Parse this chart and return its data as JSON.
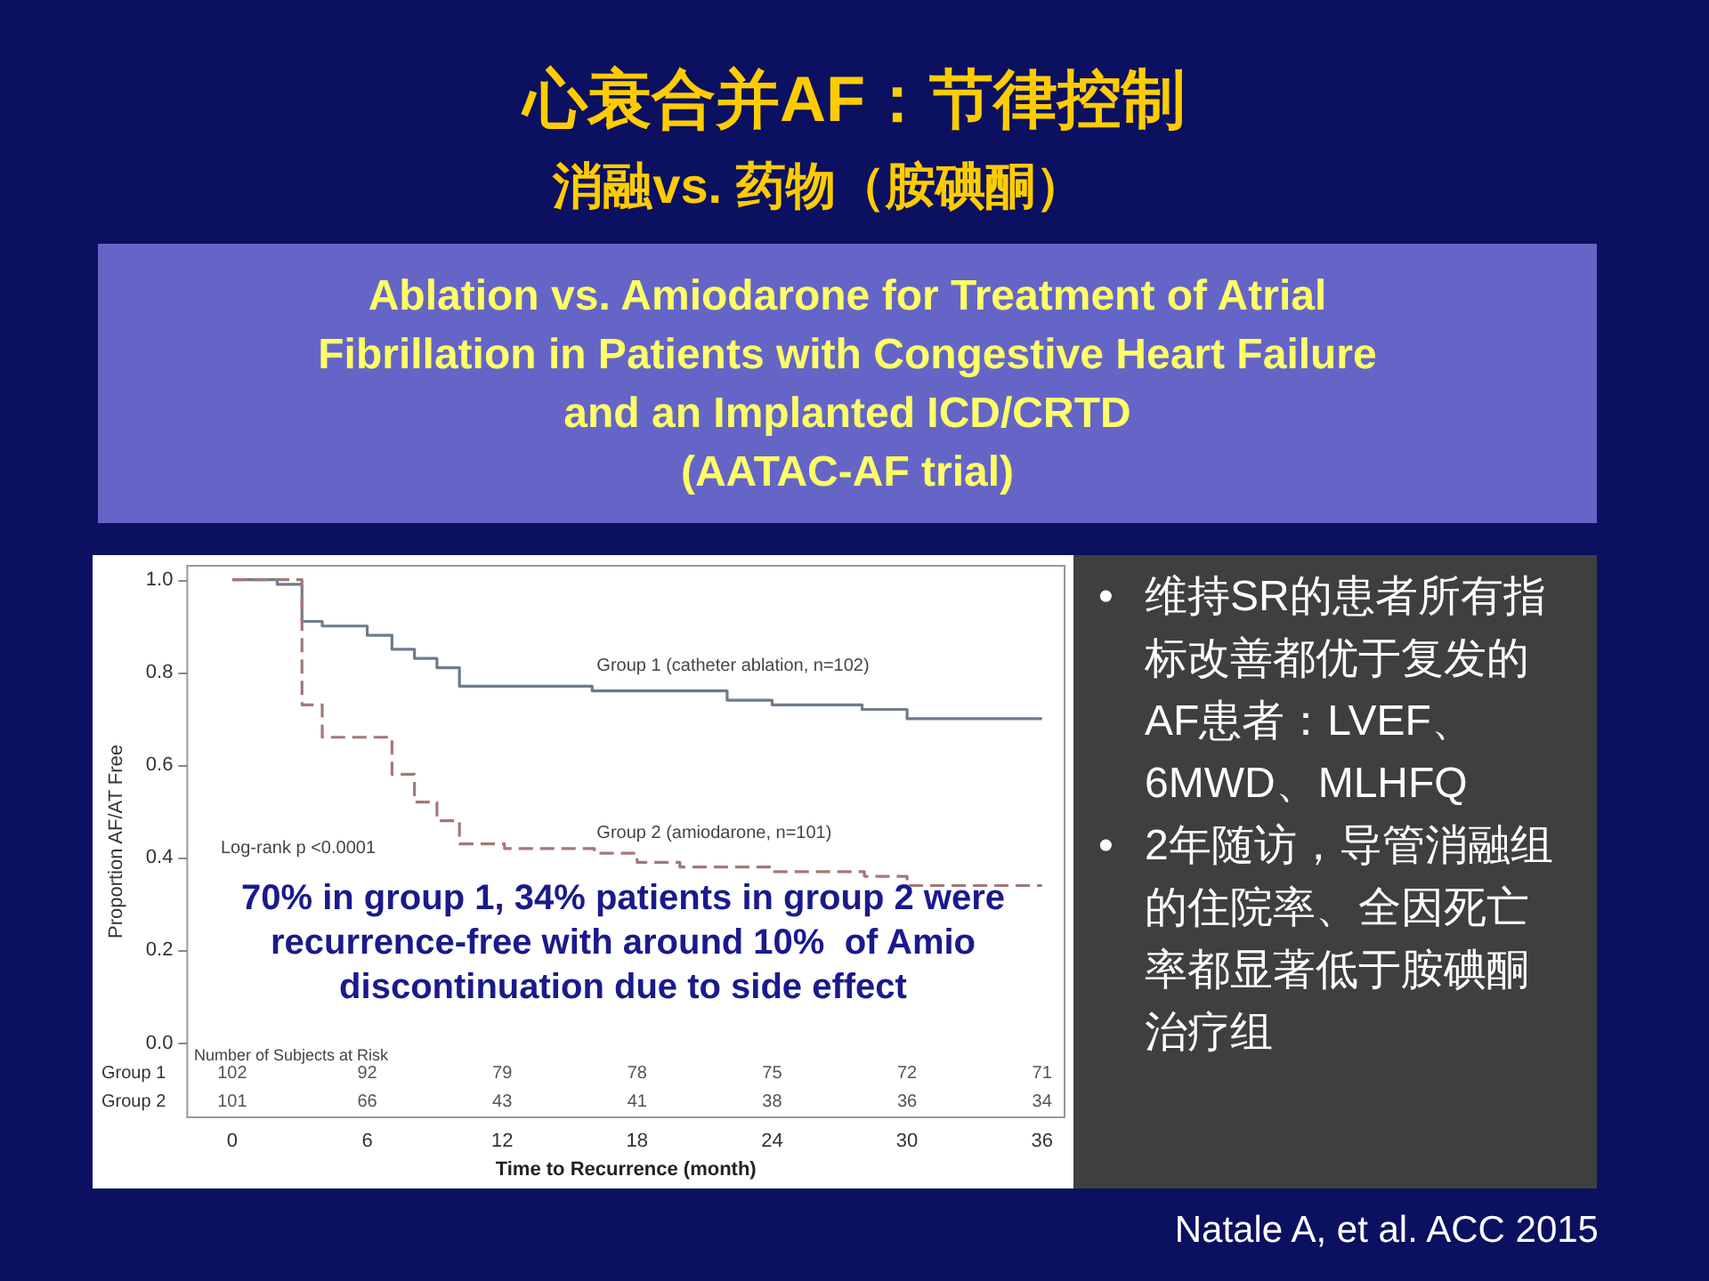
{
  "chart_data": {
    "type": "step",
    "title": "心衰合并AF：节律控制",
    "subtitle": "消融vs. 药物（胺碘酮）",
    "xlabel": "Time to Recurrence (month)",
    "ylabel": "Proportion AF/AT Free",
    "xlim": [
      -2,
      37
    ],
    "xticks": [
      0,
      6,
      12,
      18,
      24,
      30,
      36
    ],
    "ylim": [
      -0.16,
      1.03
    ],
    "yticks": [
      {
        "value": 0,
        "label": "0.0"
      },
      {
        "value": 0.2,
        "label": "0.2"
      },
      {
        "value": 0.4,
        "label": "0.4"
      },
      {
        "value": 0.6,
        "label": "0.6"
      },
      {
        "value": 0.8,
        "label": "0.8"
      },
      {
        "value": 1,
        "label": "1.0"
      }
    ],
    "grid": false,
    "legend": false,
    "series": [
      {
        "name": "Group 1 (catheter ablation, n=102)",
        "color": "#6d7b8c",
        "line_style": "solid",
        "x": [
          0,
          2,
          3.1,
          4,
          6,
          7.1,
          8.1,
          9.1,
          10.1,
          16,
          22,
          24,
          28,
          30,
          36
        ],
        "values": [
          1,
          0.99,
          0.91,
          0.9,
          0.88,
          0.85,
          0.83,
          0.81,
          0.77,
          0.76,
          0.74,
          0.73,
          0.72,
          0.7,
          0.7
        ]
      },
      {
        "name": "Group 2 (amiodarone, n=101)",
        "color": "#a47878",
        "line_style": "dashed",
        "x": [
          0,
          3.1,
          4,
          7.1,
          8.1,
          9.1,
          10.1,
          12.1,
          16.1,
          18,
          19.9,
          24,
          28.1,
          30,
          36
        ],
        "values": [
          1,
          0.73,
          0.66,
          0.58,
          0.52,
          0.48,
          0.43,
          0.42,
          0.41,
          0.39,
          0.38,
          0.37,
          0.36,
          0.34,
          0.34
        ]
      }
    ],
    "annotations": [
      "Ablation vs. Amiodarone for Treatment of Atrial\nFibrillation in Patients with Congestive Heart Failure\nand an Implanted ICD/CRTD\n(AATAC-AF trial)",
      "Log-rank p <0.0001",
      "70% in group 1, 34% patients in group 2 were\nrecurrence-free with around 10%  of Amio\ndiscontinuation due to side effect",
      "• 维持SR的患者所有指标改善都优于复发的AF患者：LVEF、6MWD、MLHFQ",
      "• 2年随访，导管消融组的住院率、全因死亡率都显著低于胺碘酮治疗组",
      "Natale A, et al. ACC 2015",
      "Number of Subjects at Risk",
      "Group 1",
      "102",
      "92",
      "79",
      "78",
      "75",
      "72",
      "71",
      "Group 2",
      "101",
      "66",
      "43",
      "41",
      "38",
      "36",
      "34"
    ]
  }
}
